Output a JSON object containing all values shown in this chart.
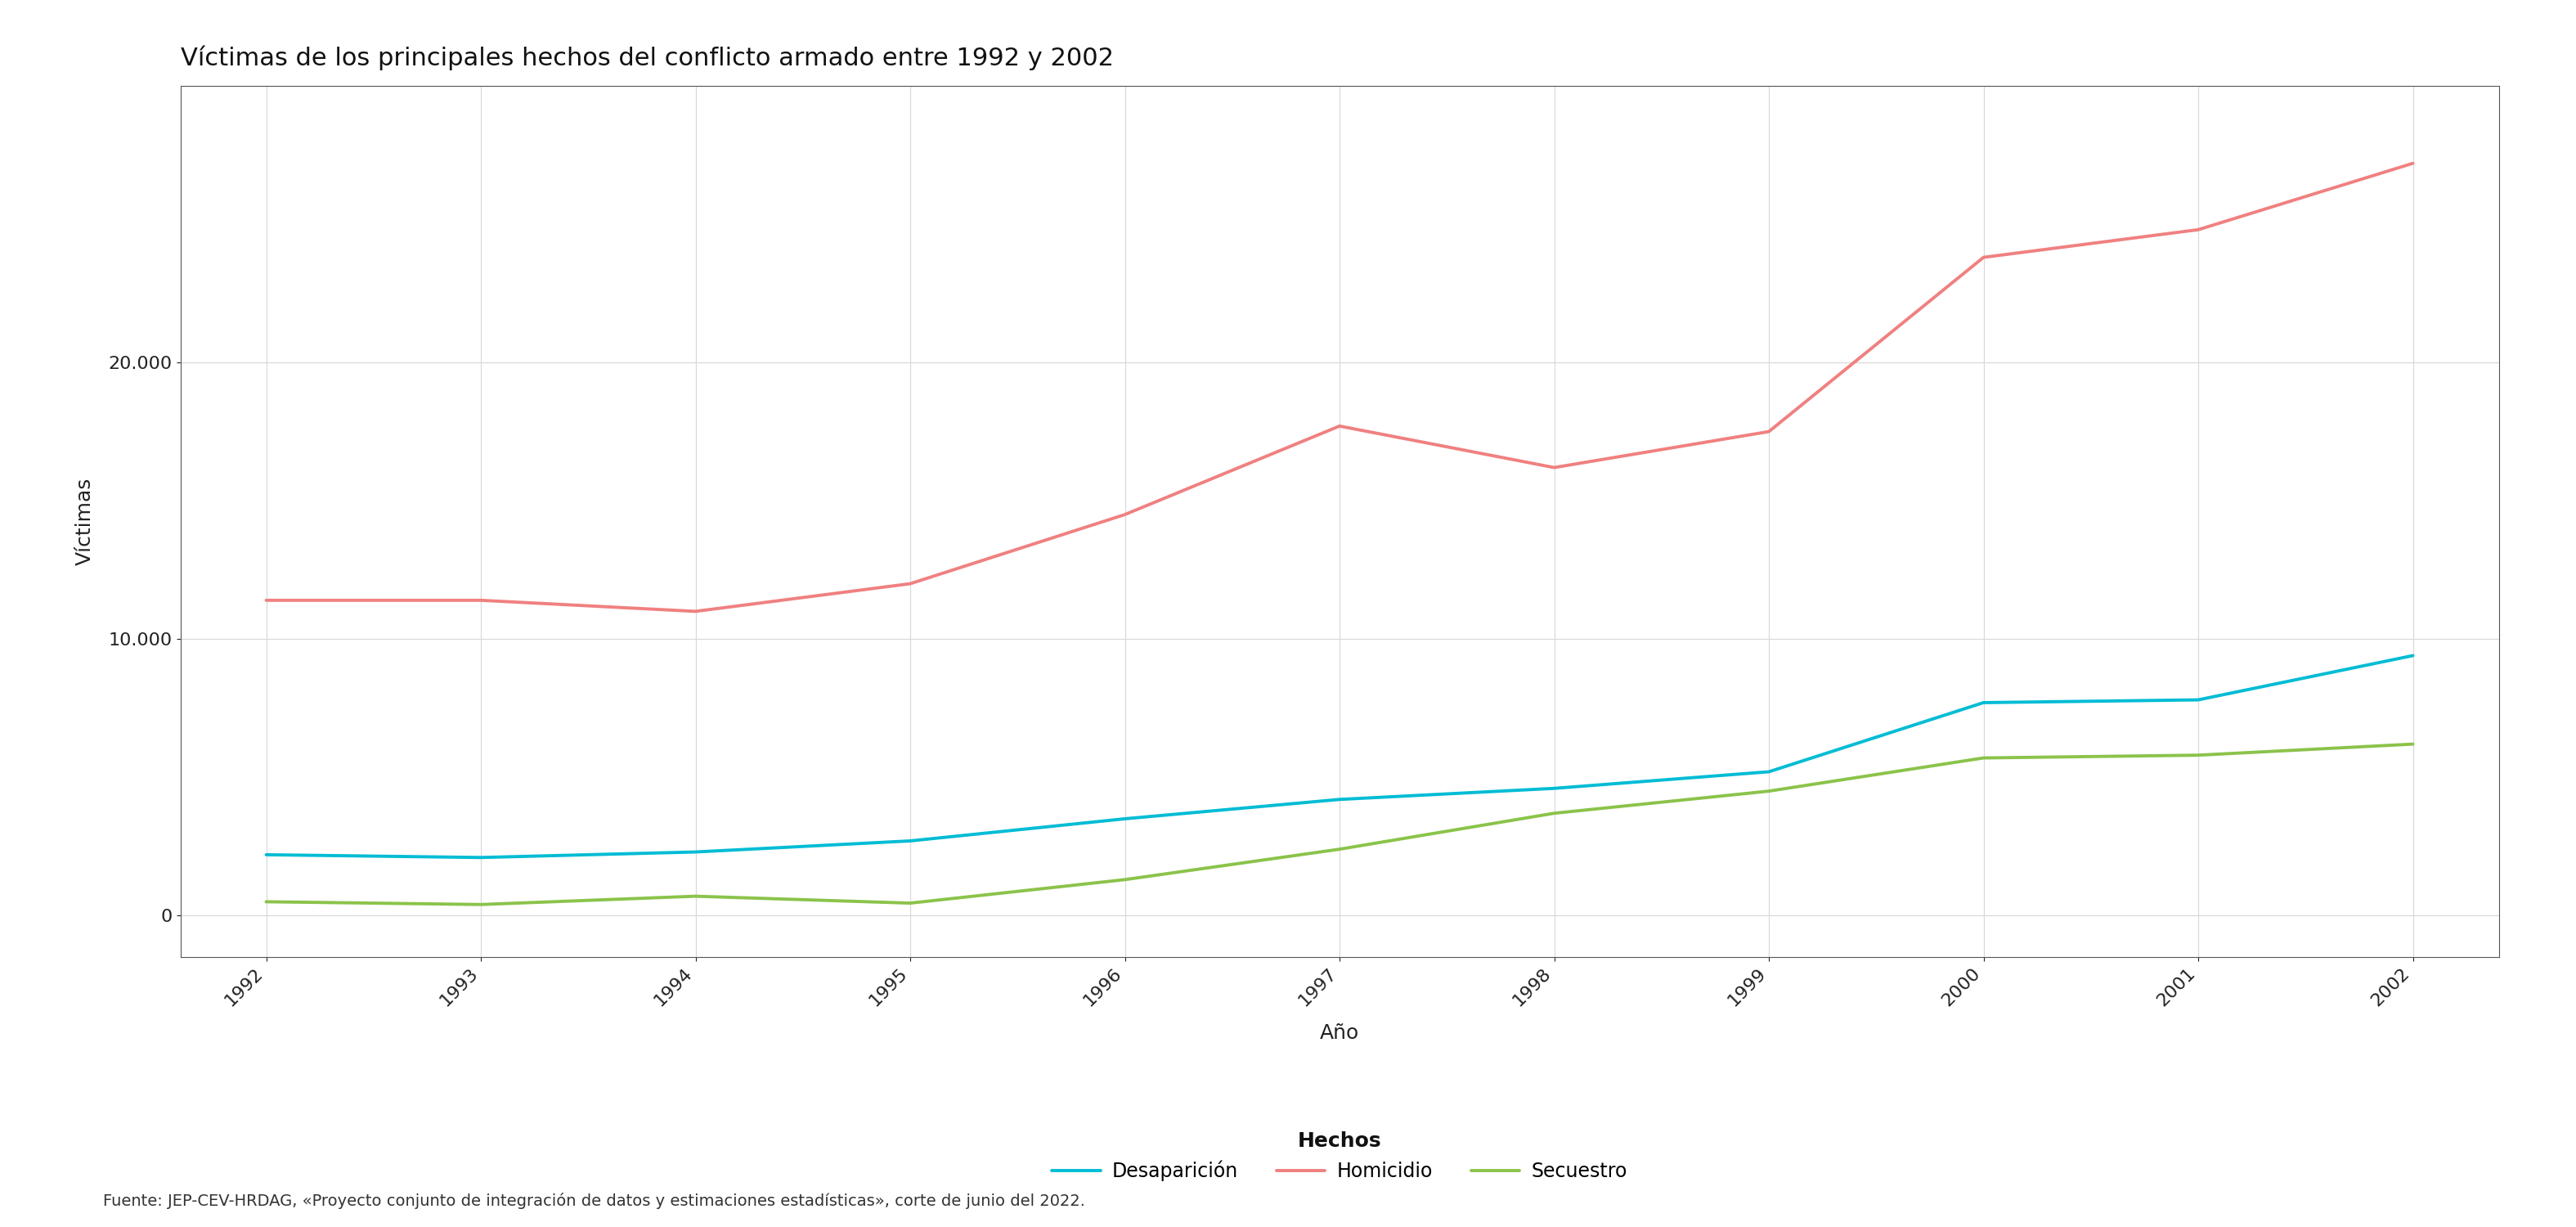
{
  "title": "Víctimas de los principales hechos del conflicto armado entre 1992 y 2002",
  "xlabel": "Año",
  "ylabel": "Víctimas",
  "footnote": "Fuente: JEP-CEV-HRDAG, «Proyecto conjunto de integración de datos y estimaciones estadísticas», corte de junio del 2022.",
  "legend_title": "Hechos",
  "years": [
    1992,
    1993,
    1994,
    1995,
    1996,
    1997,
    1998,
    1999,
    2000,
    2001,
    2002
  ],
  "desaparicion": [
    2200,
    2100,
    2300,
    2700,
    3500,
    4200,
    4600,
    5200,
    7700,
    7800,
    9400
  ],
  "homicidio": [
    11400,
    11400,
    11000,
    12000,
    14500,
    17700,
    16200,
    17500,
    23800,
    24800,
    27200
  ],
  "secuestro": [
    500,
    400,
    700,
    450,
    1300,
    2400,
    3700,
    4500,
    5700,
    5800,
    6200
  ],
  "color_desaparicion": "#00BCD4",
  "color_homicidio": "#F08080",
  "color_secuestro": "#8BC34A",
  "line_width": 2.8,
  "background_color": "#ffffff",
  "panel_background": "#ffffff",
  "grid_color": "#d9d9d9",
  "ylim": [
    -1500,
    30000
  ],
  "yticks": [
    0,
    10000,
    20000
  ],
  "title_fontsize": 22,
  "axis_label_fontsize": 18,
  "tick_fontsize": 16,
  "legend_fontsize": 17,
  "footnote_fontsize": 14
}
